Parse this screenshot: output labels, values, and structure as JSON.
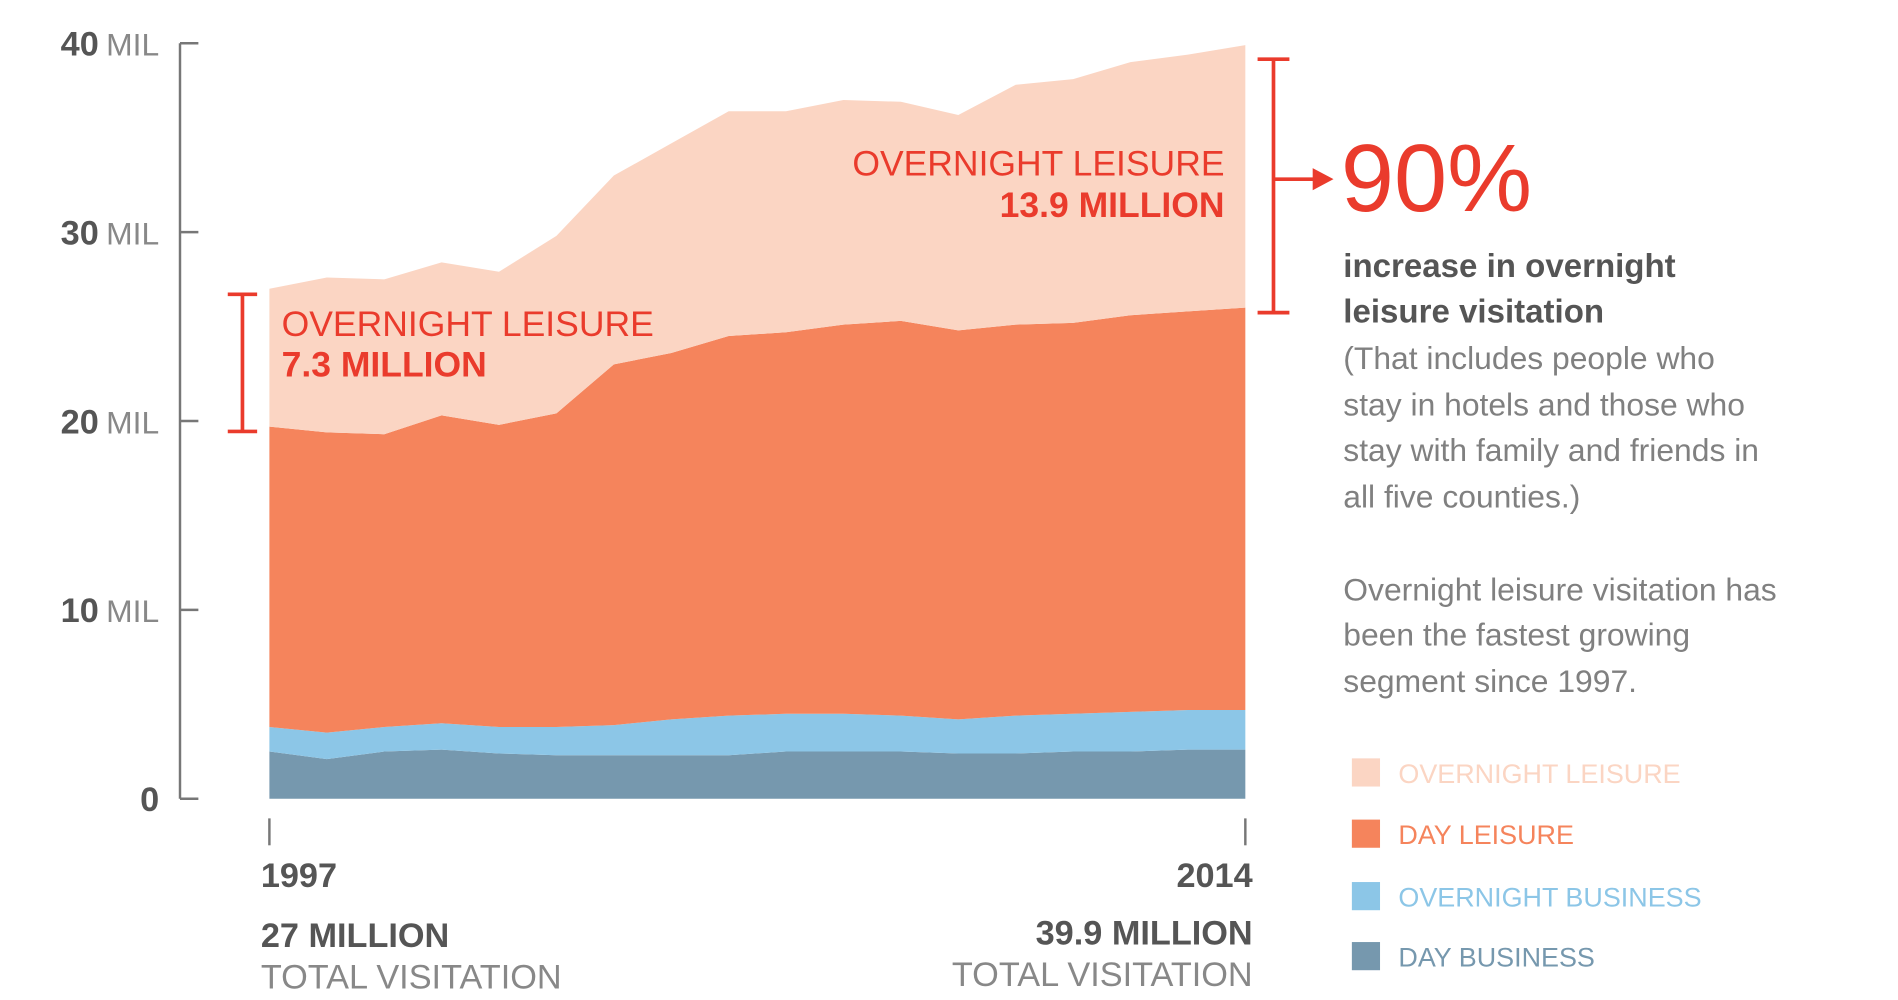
{
  "chart_data": {
    "type": "area",
    "stacked": true,
    "x": [
      1997,
      1998,
      1999,
      2000,
      2001,
      2002,
      2003,
      2004,
      2005,
      2006,
      2007,
      2008,
      2009,
      2010,
      2011,
      2012,
      2013,
      2014
    ],
    "series": [
      {
        "name": "DAY BUSINESS",
        "color": "#7698ae",
        "values": [
          2.5,
          2.1,
          2.5,
          2.6,
          2.4,
          2.3,
          2.3,
          2.3,
          2.3,
          2.5,
          2.5,
          2.5,
          2.4,
          2.4,
          2.5,
          2.5,
          2.6,
          2.6
        ]
      },
      {
        "name": "OVERNIGHT BUSINESS",
        "color": "#8cc6e7",
        "values": [
          1.3,
          1.4,
          1.3,
          1.4,
          1.4,
          1.5,
          1.6,
          1.9,
          2.1,
          2.0,
          2.0,
          1.9,
          1.8,
          2.0,
          2.0,
          2.1,
          2.1,
          2.1
        ]
      },
      {
        "name": "DAY LEISURE",
        "color": "#f5845c",
        "values": [
          15.9,
          15.9,
          15.5,
          16.3,
          16.0,
          16.6,
          19.1,
          19.4,
          20.1,
          20.2,
          20.6,
          20.9,
          20.6,
          20.7,
          20.7,
          21.0,
          21.1,
          21.3
        ]
      },
      {
        "name": "OVERNIGHT LEISURE",
        "color": "#fbd5c3",
        "values": [
          7.3,
          8.2,
          8.2,
          8.1,
          8.1,
          9.4,
          10.0,
          11.1,
          11.9,
          11.7,
          11.9,
          11.6,
          11.4,
          12.7,
          12.9,
          13.4,
          13.6,
          13.9
        ]
      }
    ],
    "ylim": [
      0,
      40
    ],
    "yticks": [
      {
        "value": 40,
        "num": "40",
        "unit": "MIL"
      },
      {
        "value": 30,
        "num": "30",
        "unit": "MIL"
      },
      {
        "value": 20,
        "num": "20",
        "unit": "MIL"
      },
      {
        "value": 10,
        "num": "10",
        "unit": "MIL"
      },
      {
        "value": 0,
        "num": "0",
        "unit": ""
      }
    ],
    "legend_position": "bottom-right",
    "legend": [
      "OVERNIGHT LEISURE",
      "DAY LEISURE",
      "OVERNIGHT BUSINESS",
      "DAY BUSINESS"
    ]
  },
  "annotations": {
    "start_label": "OVERNIGHT LEISURE",
    "start_value": "7.3 MILLION",
    "end_label": "OVERNIGHT LEISURE",
    "end_value": "13.9 MILLION"
  },
  "x_axis": {
    "start_year": "1997",
    "start_total": "27 MILLION",
    "start_caption": "TOTAL VISITATION",
    "end_year": "2014",
    "end_total": "39.9 MILLION",
    "end_caption": "TOTAL VISITATION"
  },
  "callout": {
    "percent": "90%",
    "headline": [
      "increase in overnight",
      "leisure visitation"
    ],
    "detail": [
      "(That includes people who",
      "stay in hotels and those who",
      "stay with family and friends in",
      "all five counties.)"
    ],
    "summary": [
      "Overnight leisure visitation has",
      "been the fastest growing",
      "segment since 1997."
    ]
  },
  "colors": {
    "accent": "#ea3b2c",
    "text": "#555555"
  }
}
